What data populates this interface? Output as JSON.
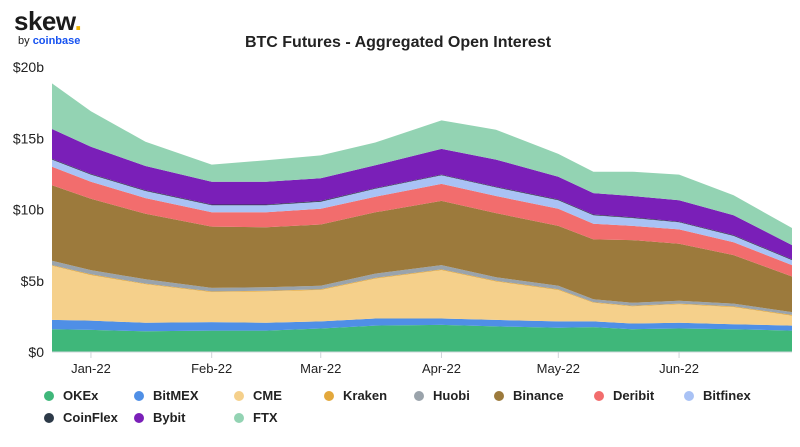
{
  "brand": {
    "name": "skew",
    "by": "by",
    "company": "coinbase"
  },
  "chart_data": {
    "type": "area",
    "stacked": true,
    "title": "BTC Futures - Aggregated Open Interest",
    "xlabel": "",
    "ylabel": "",
    "ylim": [
      0,
      20
    ],
    "y_ticks": [
      0,
      5,
      10,
      15,
      20
    ],
    "y_tick_labels": [
      "$0",
      "$5b",
      "$10b",
      "$15b",
      "$20b"
    ],
    "x_range": [
      "2021-12-22",
      "2022-06-30"
    ],
    "x_ticks": [
      {
        "date": "2022-01-01",
        "label": "Jan-22"
      },
      {
        "date": "2022-02-01",
        "label": "Feb-22"
      },
      {
        "date": "2022-03-01",
        "label": "Mar-22"
      },
      {
        "date": "2022-04-01",
        "label": "Apr-22"
      },
      {
        "date": "2022-05-01",
        "label": "May-22"
      },
      {
        "date": "2022-06-01",
        "label": "Jun-22"
      }
    ],
    "unit": "USD billions",
    "dates": [
      "2021-12-22",
      "2022-01-01",
      "2022-01-15",
      "2022-02-01",
      "2022-02-15",
      "2022-03-01",
      "2022-03-15",
      "2022-04-01",
      "2022-04-15",
      "2022-05-01",
      "2022-05-10",
      "2022-05-20",
      "2022-06-01",
      "2022-06-15",
      "2022-06-30"
    ],
    "series": [
      {
        "name": "OKEx",
        "color": "#3fb77a",
        "values": [
          1.6,
          1.55,
          1.45,
          1.5,
          1.5,
          1.65,
          1.85,
          1.9,
          1.8,
          1.7,
          1.75,
          1.6,
          1.65,
          1.6,
          1.5
        ]
      },
      {
        "name": "BitMEX",
        "color": "#4f8fe6",
        "values": [
          0.65,
          0.65,
          0.6,
          0.6,
          0.55,
          0.5,
          0.5,
          0.45,
          0.45,
          0.45,
          0.4,
          0.4,
          0.4,
          0.35,
          0.35
        ]
      },
      {
        "name": "CME",
        "color": "#f5d08b",
        "values": [
          3.8,
          3.2,
          2.7,
          2.1,
          2.2,
          2.2,
          2.8,
          3.4,
          2.7,
          2.2,
          1.3,
          1.2,
          1.3,
          1.2,
          0.7
        ]
      },
      {
        "name": "Kraken",
        "color": "#e3a83c",
        "values": [
          0.05,
          0.05,
          0.05,
          0.05,
          0.05,
          0.05,
          0.05,
          0.05,
          0.05,
          0.05,
          0.05,
          0.05,
          0.05,
          0.05,
          0.05
        ]
      },
      {
        "name": "Huobi",
        "color": "#9aa3ab",
        "values": [
          0.3,
          0.3,
          0.3,
          0.25,
          0.25,
          0.25,
          0.3,
          0.3,
          0.25,
          0.25,
          0.2,
          0.2,
          0.2,
          0.2,
          0.2
        ]
      },
      {
        "name": "Binance",
        "color": "#9c7a3c",
        "values": [
          5.3,
          5.0,
          4.6,
          4.3,
          4.2,
          4.3,
          4.3,
          4.5,
          4.5,
          4.2,
          4.2,
          4.4,
          4.0,
          3.4,
          2.5
        ]
      },
      {
        "name": "Deribit",
        "color": "#f26d6d",
        "values": [
          1.3,
          1.2,
          1.1,
          1.0,
          1.05,
          1.1,
          1.1,
          1.2,
          1.2,
          1.2,
          1.1,
          1.0,
          1.0,
          0.9,
          0.8
        ]
      },
      {
        "name": "Bitfinex",
        "color": "#a9c2f5",
        "values": [
          0.5,
          0.5,
          0.5,
          0.5,
          0.5,
          0.5,
          0.55,
          0.6,
          0.6,
          0.6,
          0.6,
          0.55,
          0.5,
          0.45,
          0.35
        ]
      },
      {
        "name": "CoinFlex",
        "color": "#2d3a48",
        "values": [
          0.05,
          0.05,
          0.05,
          0.05,
          0.05,
          0.05,
          0.05,
          0.05,
          0.05,
          0.05,
          0.05,
          0.05,
          0.05,
          0.05,
          0.05
        ]
      },
      {
        "name": "Bybit",
        "color": "#7a1fb8",
        "values": [
          2.1,
          1.9,
          1.7,
          1.6,
          1.6,
          1.6,
          1.6,
          1.8,
          1.9,
          1.6,
          1.5,
          1.5,
          1.5,
          1.4,
          1.0
        ]
      },
      {
        "name": "FTX",
        "color": "#93d3b3",
        "values": [
          3.2,
          2.5,
          1.7,
          1.2,
          1.5,
          1.6,
          1.6,
          2.0,
          2.1,
          1.6,
          1.5,
          1.7,
          1.8,
          1.4,
          1.2
        ]
      }
    ],
    "grid": false,
    "legend_position": "bottom"
  }
}
